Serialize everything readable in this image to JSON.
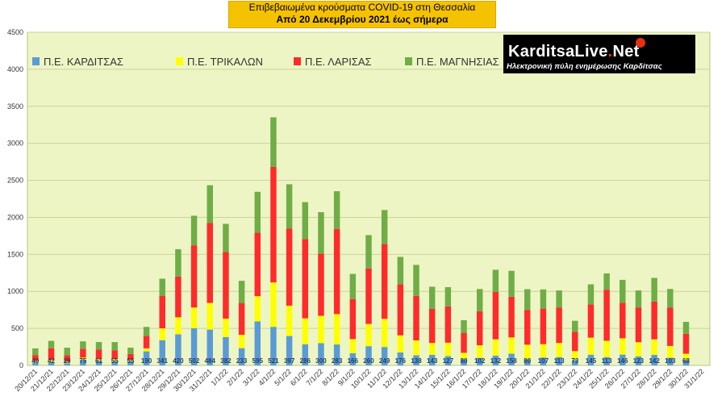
{
  "title": {
    "line1": "Επιβεβαιωμένα κρούσματα COVID-19 στη Θεσσαλία",
    "line2": "Από 20 Δεκεμβρίου 2021 έως σήμερα"
  },
  "logo": {
    "brand_main": "KarditsaLive",
    "brand_dot": ".",
    "brand_tld": "Net",
    "tagline": "Ηλεκτρονική πύλη ενημέρωσης Καρδίτσας"
  },
  "colors": {
    "plot_bg": "#eef5c4",
    "grid": "#c9d49a",
    "karditsa": "#5b9bd5",
    "trikala": "#ffff00",
    "larisa": "#ff2b2b",
    "magnisia": "#70ad47"
  },
  "chart_data": {
    "type": "bar",
    "stacked": true,
    "ylim": [
      0,
      4500
    ],
    "yticks": [
      0,
      500,
      1000,
      1500,
      2000,
      2500,
      3000,
      3500,
      4000,
      4500
    ],
    "grid": true,
    "legend_position": "top-left",
    "categories": [
      "20/12/21",
      "21/12/21",
      "22/12/21",
      "23/12/21",
      "24/12/21",
      "25/12/21",
      "26/12/21",
      "27/12/21",
      "28/12/21",
      "29/12/21",
      "30/12/21",
      "31/12/21",
      "1/1/22",
      "2/1/22",
      "3/1/22",
      "4/1/22",
      "5/1/22",
      "6/1/22",
      "7/1/22",
      "8/1/22",
      "9/1/22",
      "10/1/22",
      "11/1/22",
      "12/1/22",
      "13/1/22",
      "14/1/22",
      "15/1/22",
      "16/1/22",
      "17/1/22",
      "18/1/22",
      "19/1/22",
      "20/1/22",
      "21/1/22",
      "22/1/22",
      "23/1/22",
      "24/1/22",
      "25/1/22",
      "26/1/22",
      "27/1/22",
      "28/1/22",
      "29/1/22",
      "30/1/22",
      "31/1/22"
    ],
    "series": [
      {
        "name": "Π.Ε. ΚΑΡΔΙΤΣΑΣ",
        "color": "#5b9bd5",
        "show_labels": true,
        "values": [
          40,
          42,
          29,
          75,
          61,
          55,
          55,
          190,
          341,
          420,
          502,
          484,
          382,
          233,
          595,
          521,
          397,
          286,
          300,
          283,
          166,
          260,
          249,
          176,
          138,
          143,
          127,
          80,
          102,
          132,
          158,
          80,
          107,
          113,
          73,
          145,
          113,
          146,
          123,
          142,
          103,
          68,
          0
        ]
      },
      {
        "name": "Π.Ε. ΤΡΙΚΑΛΩΝ",
        "color": "#ffff00",
        "show_labels": false,
        "values": [
          20,
          30,
          20,
          30,
          25,
          30,
          20,
          40,
          160,
          230,
          280,
          360,
          250,
          180,
          340,
          600,
          410,
          350,
          370,
          410,
          190,
          300,
          380,
          230,
          200,
          160,
          180,
          90,
          170,
          220,
          220,
          200,
          180,
          190,
          120,
          230,
          220,
          220,
          190,
          210,
          160,
          90,
          0
        ]
      },
      {
        "name": "Π.Ε. ΛΑΡΙΣΑΣ",
        "color": "#ff2b2b",
        "show_labels": false,
        "values": [
          80,
          160,
          90,
          120,
          130,
          120,
          80,
          170,
          440,
          550,
          840,
          1080,
          900,
          430,
          860,
          1560,
          1040,
          1070,
          840,
          1150,
          540,
          750,
          1010,
          690,
          600,
          460,
          490,
          270,
          460,
          640,
          550,
          470,
          480,
          480,
          260,
          450,
          690,
          480,
          470,
          510,
          520,
          270,
          0
        ]
      },
      {
        "name": "Π.Ε. ΜΑΓΝΗΣΙΑΣ",
        "color": "#70ad47",
        "show_labels": false,
        "values": [
          90,
          100,
          100,
          100,
          100,
          110,
          85,
          120,
          230,
          370,
          400,
          510,
          380,
          300,
          550,
          670,
          600,
          500,
          560,
          510,
          340,
          450,
          460,
          370,
          420,
          300,
          260,
          170,
          300,
          300,
          350,
          280,
          260,
          230,
          150,
          270,
          220,
          310,
          230,
          320,
          250,
          160,
          0
        ]
      }
    ]
  }
}
